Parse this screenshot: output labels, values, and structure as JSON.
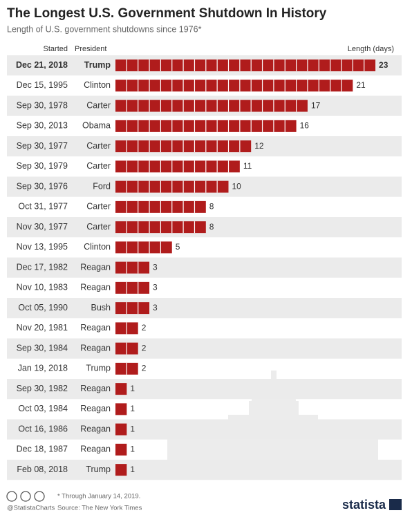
{
  "chart_data": {
    "type": "bar",
    "title": "The Longest U.S. Government Shutdown In History",
    "subtitle": "Length of U.S. government shutdowns since 1976*",
    "column_headers": {
      "started": "Started",
      "president": "President",
      "length": "Length (days)"
    },
    "categories": [
      "Dec 21, 2018",
      "Dec 15, 1995",
      "Sep 30, 1978",
      "Sep 30, 2013",
      "Sep 30, 1977",
      "Sep 30, 1979",
      "Sep 30, 1976",
      "Oct 31, 1977",
      "Nov 30, 1977",
      "Nov 13, 1995",
      "Dec 17, 1982",
      "Nov 10, 1983",
      "Oct 05, 1990",
      "Nov 20, 1981",
      "Sep 30, 1984",
      "Jan 19, 2018",
      "Sep 30, 1982",
      "Oct 03, 1984",
      "Oct 16, 1986",
      "Dec 18, 1987",
      "Feb 08, 2018"
    ],
    "presidents": [
      "Trump",
      "Clinton",
      "Carter",
      "Obama",
      "Carter",
      "Carter",
      "Ford",
      "Carter",
      "Carter",
      "Clinton",
      "Reagan",
      "Reagan",
      "Bush",
      "Reagan",
      "Reagan",
      "Trump",
      "Reagan",
      "Reagan",
      "Reagan",
      "Reagan",
      "Trump"
    ],
    "values": [
      23,
      21,
      17,
      16,
      12,
      11,
      10,
      8,
      8,
      5,
      3,
      3,
      3,
      2,
      2,
      2,
      1,
      1,
      1,
      1,
      1
    ],
    "color": "#b01c1c",
    "footnote": "* Through January 14, 2019.",
    "source": "Source: The New York Times",
    "credit": "@StatistaCharts",
    "brand": "statista"
  }
}
